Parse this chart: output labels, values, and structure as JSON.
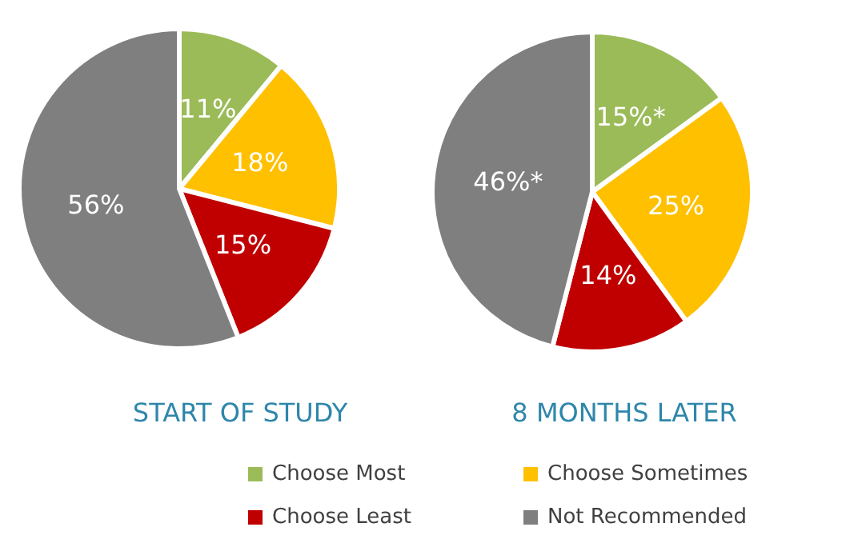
{
  "chart_data": {
    "type": "pie",
    "categories": [
      "Choose Most",
      "Choose Sometimes",
      "Choose Least",
      "Not Recommended"
    ],
    "colors": [
      "#9bbb59",
      "#ffc000",
      "#c00000",
      "#7f7f7f"
    ],
    "legend": "bottom",
    "series": [
      {
        "name": "START OF STUDY",
        "values": [
          11,
          18,
          15,
          56
        ],
        "value_labels": [
          "11%",
          "18%",
          "15%",
          "56%"
        ]
      },
      {
        "name": "8 MONTHS LATER",
        "values": [
          15,
          25,
          14,
          46
        ],
        "value_labels": [
          "15%*",
          "25%",
          "14%",
          "46%*"
        ]
      }
    ]
  }
}
